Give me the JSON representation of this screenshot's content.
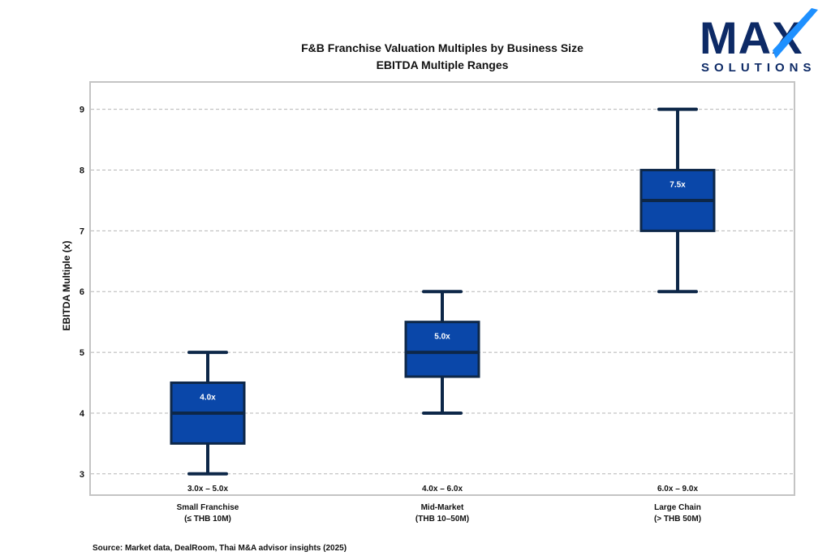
{
  "logo": {
    "word": "MAX",
    "subword": "SOLUTIONS",
    "colors": {
      "navy": "#0d2a66",
      "accent": "#1e90ff"
    }
  },
  "source_note": "Source: Market data, DealRoom, Thai M&A advisor insights (2025)",
  "colors": {
    "box_fill": "#0a47a9",
    "box_stroke": "#0d2748",
    "grid": "#b5b5b5",
    "frame": "#c4c4c4"
  },
  "chart_data": {
    "type": "box",
    "title": "F&B Franchise Valuation Multiples by Business Size",
    "subtitle": "EBITDA Multiple Ranges",
    "ylabel": "EBITDA Multiple (x)",
    "xlabel": "",
    "ylim": [
      2.65,
      9.45
    ],
    "yticks": [
      3,
      4,
      5,
      6,
      7,
      8,
      9
    ],
    "grid": true,
    "categories": [
      {
        "line1": "Small Franchise",
        "line2": "(≤ THB 10M)"
      },
      {
        "line1": "Mid-Market",
        "line2": "(THB 10–50M)"
      },
      {
        "line1": "Large Chain",
        "line2": "(> THB 50M)"
      }
    ],
    "boxes": [
      {
        "min": 3.0,
        "q1": 3.5,
        "median": 4.0,
        "q3": 4.5,
        "max": 5.0,
        "median_label": "4.0x",
        "range_label": "3.0x – 5.0x"
      },
      {
        "min": 4.0,
        "q1": 4.6,
        "median": 5.0,
        "q3": 5.5,
        "max": 6.0,
        "median_label": "5.0x",
        "range_label": "4.0x – 6.0x"
      },
      {
        "min": 6.0,
        "q1": 7.0,
        "median": 7.5,
        "q3": 8.0,
        "max": 9.0,
        "median_label": "7.5x",
        "range_label": "6.0x – 9.0x"
      }
    ]
  }
}
